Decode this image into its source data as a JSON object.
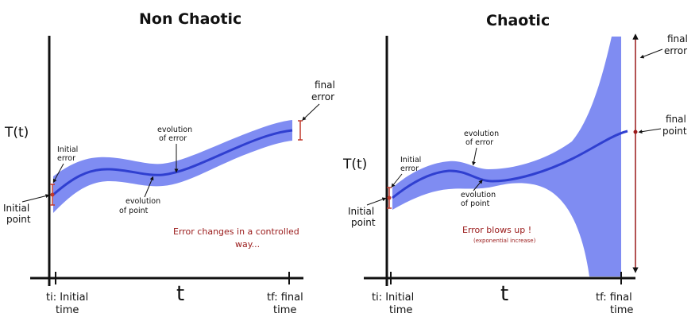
{
  "panels": {
    "left": {
      "title": "Non Chaotic",
      "y_axis_label": "T(t)",
      "x_axis_label": "t",
      "ti_label_line1": "ti: Initial",
      "ti_label_line2": "time",
      "tf_label_line1": "tf: final",
      "tf_label_line2": "time",
      "initial_error_line1": "Initial",
      "initial_error_line2": "error",
      "initial_point_line1": "Initial",
      "initial_point_line2": "point",
      "evolution_error_line1": "evolution",
      "evolution_error_line2": "of error",
      "evolution_point_line1": "evolution",
      "evolution_point_line2": "of point",
      "final_error_line1": "final",
      "final_error_line2": "error",
      "note_line1": "Error changes in a controlled",
      "note_line2": "way..."
    },
    "right": {
      "title": "Chaotic",
      "y_axis_label": "T(t)",
      "x_axis_label": "t",
      "ti_label_line1": "ti: Initial",
      "ti_label_line2": "time",
      "tf_label_line1": "tf: final",
      "tf_label_line2": "time",
      "initial_error_line1": "Initial",
      "initial_error_line2": "error",
      "initial_point_line1": "Initial",
      "initial_point_line2": "point",
      "evolution_error_line1": "evolution",
      "evolution_error_line2": "of error",
      "evolution_point_line1": "evolution",
      "evolution_point_line2": "of point",
      "final_error_line1": "final",
      "final_error_line2": "error",
      "final_point_line1": "final",
      "final_point_line2": "point",
      "note_line1": "Error blows up !",
      "note_line2": "(exponential increase)"
    }
  },
  "colors": {
    "band": "#7f8cf2",
    "line": "#2f3fd0",
    "axis": "#111111",
    "error_bar": "#c0392b",
    "note": "#9a1a1a"
  }
}
